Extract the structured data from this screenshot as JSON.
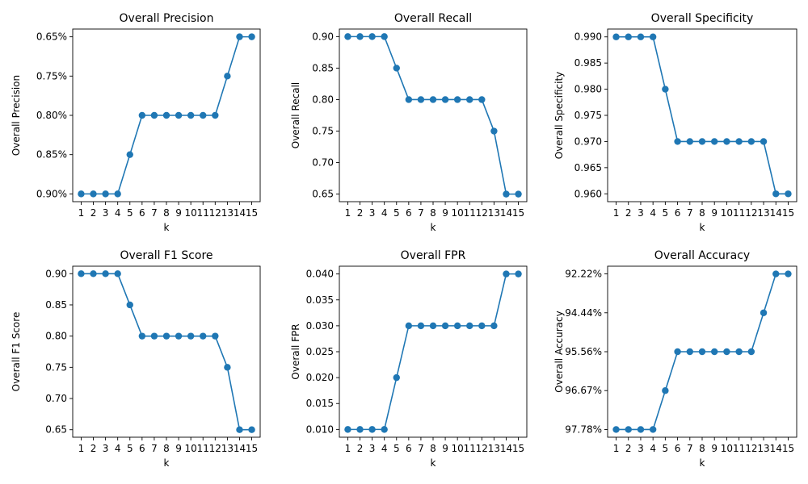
{
  "chart_data": [
    {
      "type": "line",
      "title": "Overall Precision",
      "xlabel": "k",
      "ylabel": "Overall Precision",
      "x": [
        1,
        2,
        3,
        4,
        5,
        6,
        7,
        8,
        9,
        10,
        11,
        12,
        13,
        14,
        15
      ],
      "xticks": [
        "1",
        "2",
        "3",
        "4",
        "5",
        "6",
        "7",
        "8",
        "9",
        "10",
        "11",
        "12",
        "13",
        "14",
        "15"
      ],
      "categorical_y": true,
      "yticks": [
        "0.90%",
        "0.85%",
        "0.80%",
        "0.75%",
        "0.65%"
      ],
      "values": [
        "0.90%",
        "0.90%",
        "0.90%",
        "0.90%",
        "0.85%",
        "0.80%",
        "0.80%",
        "0.80%",
        "0.80%",
        "0.80%",
        "0.80%",
        "0.80%",
        "0.75%",
        "0.65%",
        "0.65%"
      ]
    },
    {
      "type": "line",
      "title": "Overall Recall",
      "xlabel": "k",
      "ylabel": "Overall Recall",
      "x": [
        1,
        2,
        3,
        4,
        5,
        6,
        7,
        8,
        9,
        10,
        11,
        12,
        13,
        14,
        15
      ],
      "xticks": [
        "1",
        "2",
        "3",
        "4",
        "5",
        "6",
        "7",
        "8",
        "9",
        "10",
        "11",
        "12",
        "13",
        "14",
        "15"
      ],
      "ylim": [
        0.638,
        0.912
      ],
      "yticks": [
        "0.65",
        "0.70",
        "0.75",
        "0.80",
        "0.85",
        "0.90"
      ],
      "ytick_values": [
        0.65,
        0.7,
        0.75,
        0.8,
        0.85,
        0.9
      ],
      "values": [
        0.9,
        0.9,
        0.9,
        0.9,
        0.85,
        0.8,
        0.8,
        0.8,
        0.8,
        0.8,
        0.8,
        0.8,
        0.75,
        0.65,
        0.65
      ]
    },
    {
      "type": "line",
      "title": "Overall Specificity",
      "xlabel": "k",
      "ylabel": "Overall Specificity",
      "x": [
        1,
        2,
        3,
        4,
        5,
        6,
        7,
        8,
        9,
        10,
        11,
        12,
        13,
        14,
        15
      ],
      "xticks": [
        "1",
        "2",
        "3",
        "4",
        "5",
        "6",
        "7",
        "8",
        "9",
        "10",
        "11",
        "12",
        "13",
        "14",
        "15"
      ],
      "ylim": [
        0.9585,
        0.9915
      ],
      "yticks": [
        "0.960",
        "0.965",
        "0.970",
        "0.975",
        "0.980",
        "0.985",
        "0.990"
      ],
      "ytick_values": [
        0.96,
        0.965,
        0.97,
        0.975,
        0.98,
        0.985,
        0.99
      ],
      "values": [
        0.99,
        0.99,
        0.99,
        0.99,
        0.98,
        0.97,
        0.97,
        0.97,
        0.97,
        0.97,
        0.97,
        0.97,
        0.97,
        0.96,
        0.96
      ]
    },
    {
      "type": "line",
      "title": "Overall F1 Score",
      "xlabel": "k",
      "ylabel": "Overall F1 Score",
      "x": [
        1,
        2,
        3,
        4,
        5,
        6,
        7,
        8,
        9,
        10,
        11,
        12,
        13,
        14,
        15
      ],
      "xticks": [
        "1",
        "2",
        "3",
        "4",
        "5",
        "6",
        "7",
        "8",
        "9",
        "10",
        "11",
        "12",
        "13",
        "14",
        "15"
      ],
      "ylim": [
        0.638,
        0.912
      ],
      "yticks": [
        "0.65",
        "0.70",
        "0.75",
        "0.80",
        "0.85",
        "0.90"
      ],
      "ytick_values": [
        0.65,
        0.7,
        0.75,
        0.8,
        0.85,
        0.9
      ],
      "values": [
        0.9,
        0.9,
        0.9,
        0.9,
        0.85,
        0.8,
        0.8,
        0.8,
        0.8,
        0.8,
        0.8,
        0.8,
        0.75,
        0.65,
        0.65
      ]
    },
    {
      "type": "line",
      "title": "Overall FPR",
      "xlabel": "k",
      "ylabel": "Overall FPR",
      "x": [
        1,
        2,
        3,
        4,
        5,
        6,
        7,
        8,
        9,
        10,
        11,
        12,
        13,
        14,
        15
      ],
      "xticks": [
        "1",
        "2",
        "3",
        "4",
        "5",
        "6",
        "7",
        "8",
        "9",
        "10",
        "11",
        "12",
        "13",
        "14",
        "15"
      ],
      "ylim": [
        0.0085,
        0.0415
      ],
      "yticks": [
        "0.010",
        "0.015",
        "0.020",
        "0.025",
        "0.030",
        "0.035",
        "0.040"
      ],
      "ytick_values": [
        0.01,
        0.015,
        0.02,
        0.025,
        0.03,
        0.035,
        0.04
      ],
      "values": [
        0.01,
        0.01,
        0.01,
        0.01,
        0.02,
        0.03,
        0.03,
        0.03,
        0.03,
        0.03,
        0.03,
        0.03,
        0.03,
        0.04,
        0.04
      ]
    },
    {
      "type": "line",
      "title": "Overall Accuracy",
      "xlabel": "k",
      "ylabel": "Overall Accuracy",
      "x": [
        1,
        2,
        3,
        4,
        5,
        6,
        7,
        8,
        9,
        10,
        11,
        12,
        13,
        14,
        15
      ],
      "xticks": [
        "1",
        "2",
        "3",
        "4",
        "5",
        "6",
        "7",
        "8",
        "9",
        "10",
        "11",
        "12",
        "13",
        "14",
        "15"
      ],
      "categorical_y": true,
      "yticks": [
        "97.78%",
        "96.67%",
        "95.56%",
        "94.44%",
        "92.22%"
      ],
      "values": [
        "97.78%",
        "97.78%",
        "97.78%",
        "97.78%",
        "96.67%",
        "95.56%",
        "95.56%",
        "95.56%",
        "95.56%",
        "95.56%",
        "95.56%",
        "95.56%",
        "94.44%",
        "92.22%",
        "92.22%"
      ]
    }
  ],
  "colors": {
    "series": "#1f77b4",
    "axis": "#000000",
    "background": "#ffffff"
  }
}
